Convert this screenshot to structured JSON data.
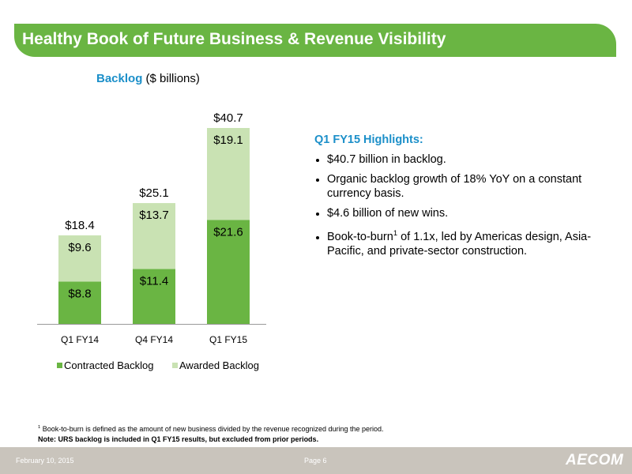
{
  "slide": {
    "title": "Healthy Book of Future Business & Revenue Visibility",
    "colors": {
      "accent_green": "#6ab543",
      "light_green": "#c9e2b3",
      "accent_blue": "#1b8fc9",
      "footer_gray": "#c9c4bc"
    }
  },
  "chart_caption": {
    "accent": "Backlog",
    "rest": " ($ billions)"
  },
  "chart_data": {
    "type": "bar",
    "stacked": true,
    "categories": [
      "Q1 FY14",
      "Q4 FY14",
      "Q1 FY15"
    ],
    "series": [
      {
        "name": "Contracted Backlog",
        "values": [
          8.8,
          11.4,
          21.6
        ],
        "labels": [
          "$8.8",
          "$11.4",
          "$21.6"
        ],
        "color": "#6ab543"
      },
      {
        "name": "Awarded Backlog",
        "values": [
          9.6,
          13.7,
          19.1
        ],
        "labels": [
          "$9.6",
          "$13.7",
          "$19.1"
        ],
        "color": "#c9e2b3"
      }
    ],
    "totals": [
      18.4,
      25.1,
      40.7
    ],
    "total_labels": [
      "$18.4",
      "$25.1",
      "$40.7"
    ],
    "ylim": [
      0,
      40.7
    ],
    "legend_position": "bottom",
    "grid": false
  },
  "highlights": {
    "title": "Q1 FY15 Highlights:",
    "bullets": [
      "$40.7 billion in backlog.",
      "Organic backlog growth of 18% YoY on a constant currency basis.",
      "$4.6 billion of new wins.",
      {
        "pre": "Book-to-burn",
        "sup": "1",
        "post": " of 1.1x, led by Americas design, Asia-Pacific, and private-sector construction."
      }
    ]
  },
  "footnote": {
    "sup": "1",
    "text": " Book-to-burn is defined as the amount of new business divided by the revenue recognized during the period.",
    "note": "Note: URS backlog is included in Q1 FY15 results, but excluded from prior periods."
  },
  "footer": {
    "date": "February 10, 2015",
    "page": "Page 6",
    "logo": "AECOM"
  }
}
